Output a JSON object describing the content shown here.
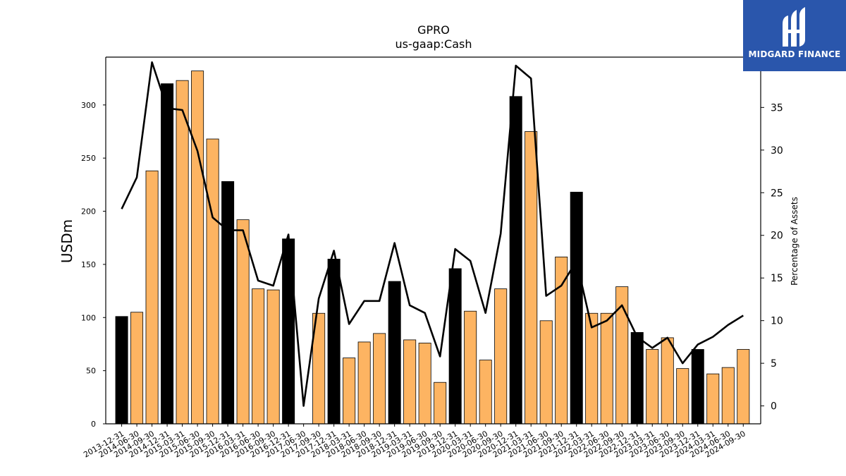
{
  "chart_data": {
    "type": "bar",
    "title": "GPRO",
    "subtitle": "us-gaap:Cash",
    "ylabel": "USDm",
    "y2label": "Percentage of Assets",
    "ylim": [
      0,
      345
    ],
    "y2lim": [
      -2.1,
      40.9
    ],
    "yticks": [
      0,
      50,
      100,
      150,
      200,
      250,
      300
    ],
    "y2ticks": [
      0,
      5,
      10,
      15,
      20,
      25,
      30,
      35,
      40
    ],
    "categories": [
      "2013-12-31",
      "2014-06-30",
      "2014-09-30",
      "2014-12-31",
      "2015-03-31",
      "2015-06-30",
      "2015-09-30",
      "2015-12-31",
      "2016-03-31",
      "2016-06-30",
      "2016-09-30",
      "2016-12-31",
      "2017-06-30",
      "2017-09-30",
      "2017-12-31",
      "2018-03-31",
      "2018-06-30",
      "2018-09-30",
      "2018-12-31",
      "2019-03-31",
      "2019-06-30",
      "2019-09-30",
      "2019-12-31",
      "2020-03-31",
      "2020-06-30",
      "2020-09-30",
      "2020-12-31",
      "2021-03-31",
      "2021-06-30",
      "2021-09-30",
      "2021-12-31",
      "2022-03-31",
      "2022-06-30",
      "2022-09-30",
      "2022-12-31",
      "2023-03-31",
      "2023-06-30",
      "2023-09-30",
      "2023-12-31",
      "2024-03-31",
      "2024-06-30",
      "2024-09-30"
    ],
    "series": [
      {
        "axis": "left",
        "kind": "bar",
        "values": [
          101,
          105,
          238,
          320,
          323,
          332,
          268,
          228,
          192,
          127,
          126,
          174,
          0,
          104,
          155,
          62,
          77,
          85,
          134,
          79,
          76,
          39,
          146,
          106,
          60,
          127,
          308,
          275,
          97,
          157,
          218,
          104,
          104,
          129,
          86,
          70,
          81,
          52,
          70,
          47,
          53,
          70
        ]
      },
      {
        "axis": "right",
        "kind": "line",
        "color": "#000000",
        "values": [
          23.1,
          26.8,
          40.3,
          34.9,
          34.7,
          29.9,
          22.1,
          20.6,
          20.6,
          14.7,
          14.1,
          20.1,
          0.0,
          12.6,
          18.2,
          9.6,
          12.3,
          12.3,
          19.1,
          11.8,
          10.9,
          5.8,
          18.4,
          17.0,
          10.9,
          20.2,
          39.9,
          38.4,
          12.9,
          14.1,
          17.0,
          9.2,
          10.0,
          11.8,
          8.1,
          6.8,
          8.0,
          5.0,
          7.2,
          8.1,
          9.5,
          10.6
        ]
      }
    ],
    "year_end_color": "#000000",
    "quarter_color": "#fdb462",
    "grid": false
  },
  "logo": {
    "text": "MIDGARD FINANCE",
    "background": "#2a56ac"
  }
}
